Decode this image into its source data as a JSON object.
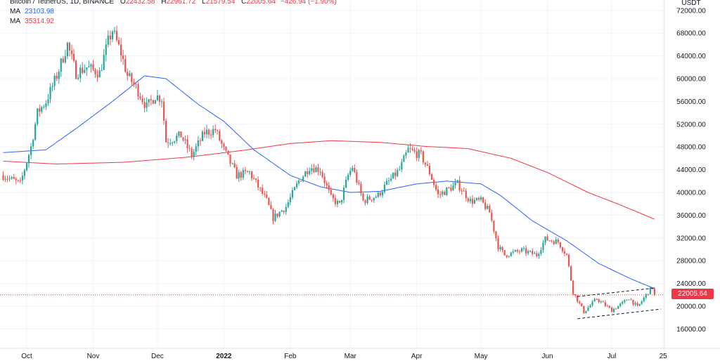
{
  "legend": {
    "symbol": "Bitcoin / TetherUS, 1D, BINANCE",
    "open_label": "O",
    "open": "22432.58",
    "high_label": "H",
    "high": "22961.72",
    "low_label": "L",
    "low": "21579.54",
    "close_label": "C",
    "close": "22005.64",
    "change": "−426.94 (−1.90%)",
    "ma1_label": "MA",
    "ma1_value": "23103.98",
    "ma2_label": "MA",
    "ma2_value": "35314.92"
  },
  "price_axis": {
    "unit": "USDT",
    "ticks": [
      "72000.00",
      "68000.00",
      "64000.00",
      "60000.00",
      "56000.00",
      "52000.00",
      "48000.00",
      "44000.00",
      "40000.00",
      "36000.00",
      "32000.00",
      "28000.00",
      "24000.00",
      "20000.00",
      "16000.00"
    ],
    "last_price": "22005.64"
  },
  "colors": {
    "up": "#26a69a",
    "down": "#ef5350",
    "ma_fast": "#2962ff",
    "ma_slow": "#f23645",
    "last_line": "#f23645"
  },
  "chart_data": {
    "type": "candlestick",
    "y_axis": {
      "min": 15000,
      "max": 73000,
      "ticks": [
        72000,
        68000,
        64000,
        60000,
        56000,
        52000,
        48000,
        44000,
        40000,
        36000,
        32000,
        28000,
        24000,
        20000,
        16000
      ]
    },
    "x_axis": {
      "ticks": [
        {
          "label": "Oct",
          "date": "2021-10-01"
        },
        {
          "label": "Nov",
          "date": "2021-11-01"
        },
        {
          "label": "Dec",
          "date": "2021-12-01"
        },
        {
          "label": "2022",
          "date": "2022-01-01",
          "bold": true
        },
        {
          "label": "Feb",
          "date": "2022-02-01"
        },
        {
          "label": "Mar",
          "date": "2022-03-01"
        },
        {
          "label": "Apr",
          "date": "2022-04-01"
        },
        {
          "label": "May",
          "date": "2022-05-01"
        },
        {
          "label": "Jun",
          "date": "2022-06-01"
        },
        {
          "label": "Jul",
          "date": "2022-07-01"
        },
        {
          "label": "25",
          "date": "2022-07-25"
        }
      ]
    },
    "price_path": [
      [
        "2021-09-20",
        43000
      ],
      [
        "2021-09-28",
        41500
      ],
      [
        "2021-10-03",
        48000
      ],
      [
        "2021-10-06",
        54000
      ],
      [
        "2021-10-10",
        56000
      ],
      [
        "2021-10-15",
        60500
      ],
      [
        "2021-10-20",
        66000
      ],
      [
        "2021-10-24",
        61000
      ],
      [
        "2021-10-29",
        62000
      ],
      [
        "2021-11-04",
        61000
      ],
      [
        "2021-11-08",
        66500
      ],
      [
        "2021-11-10",
        68500
      ],
      [
        "2021-11-14",
        64500
      ],
      [
        "2021-11-17",
        60500
      ],
      [
        "2021-11-21",
        58500
      ],
      [
        "2021-11-26",
        55000
      ],
      [
        "2021-11-30",
        57000
      ],
      [
        "2021-12-03",
        56500
      ],
      [
        "2021-12-05",
        49000
      ],
      [
        "2021-12-12",
        50000
      ],
      [
        "2021-12-17",
        46500
      ],
      [
        "2021-12-23",
        50500
      ],
      [
        "2021-12-28",
        51000
      ],
      [
        "2022-01-01",
        47500
      ],
      [
        "2022-01-07",
        43000
      ],
      [
        "2022-01-13",
        43500
      ],
      [
        "2022-01-21",
        38500
      ],
      [
        "2022-01-24",
        35500
      ],
      [
        "2022-01-30",
        37500
      ],
      [
        "2022-02-05",
        42000
      ],
      [
        "2022-02-10",
        44500
      ],
      [
        "2022-02-15",
        44000
      ],
      [
        "2022-02-20",
        39000
      ],
      [
        "2022-02-24",
        37800
      ],
      [
        "2022-02-28",
        43000
      ],
      [
        "2022-03-02",
        44500
      ],
      [
        "2022-03-07",
        38500
      ],
      [
        "2022-03-14",
        39500
      ],
      [
        "2022-03-18",
        41500
      ],
      [
        "2022-03-24",
        44000
      ],
      [
        "2022-03-28",
        47500
      ],
      [
        "2022-04-03",
        46500
      ],
      [
        "2022-04-07",
        43500
      ],
      [
        "2022-04-11",
        39500
      ],
      [
        "2022-04-20",
        41500
      ],
      [
        "2022-04-26",
        38500
      ],
      [
        "2022-05-01",
        38500
      ],
      [
        "2022-05-05",
        36500
      ],
      [
        "2022-05-09",
        30500
      ],
      [
        "2022-05-12",
        29000
      ],
      [
        "2022-05-20",
        29800
      ],
      [
        "2022-05-27",
        29000
      ],
      [
        "2022-05-31",
        31800
      ],
      [
        "2022-06-06",
        31300
      ],
      [
        "2022-06-10",
        29000
      ],
      [
        "2022-06-13",
        22500
      ],
      [
        "2022-06-18",
        19000
      ],
      [
        "2022-06-24",
        21300
      ],
      [
        "2022-07-01",
        19300
      ],
      [
        "2022-07-06",
        20500
      ],
      [
        "2022-07-09",
        21500
      ],
      [
        "2022-07-13",
        19800
      ],
      [
        "2022-07-18",
        22500
      ],
      [
        "2022-07-20",
        23300
      ],
      [
        "2022-07-21",
        22005
      ]
    ],
    "ma_fast_path": [
      [
        "2021-09-20",
        47000
      ],
      [
        "2021-10-10",
        47500
      ],
      [
        "2021-10-25",
        51500
      ],
      [
        "2021-11-10",
        56000
      ],
      [
        "2021-11-25",
        60500
      ],
      [
        "2021-12-05",
        60000
      ],
      [
        "2021-12-20",
        55500
      ],
      [
        "2022-01-01",
        52500
      ],
      [
        "2022-01-15",
        47500
      ],
      [
        "2022-02-01",
        43000
      ],
      [
        "2022-02-15",
        41000
      ],
      [
        "2022-03-01",
        40000
      ],
      [
        "2022-03-15",
        40200
      ],
      [
        "2022-04-01",
        41500
      ],
      [
        "2022-04-15",
        42000
      ],
      [
        "2022-05-01",
        41500
      ],
      [
        "2022-05-10",
        39500
      ],
      [
        "2022-05-25",
        35000
      ],
      [
        "2022-06-10",
        31500
      ],
      [
        "2022-06-25",
        27500
      ],
      [
        "2022-07-10",
        24800
      ],
      [
        "2022-07-21",
        23100
      ]
    ],
    "ma_slow_path": [
      [
        "2021-09-20",
        45500
      ],
      [
        "2021-10-15",
        45000
      ],
      [
        "2021-11-15",
        45300
      ],
      [
        "2021-12-15",
        46200
      ],
      [
        "2022-01-10",
        47400
      ],
      [
        "2022-02-01",
        48600
      ],
      [
        "2022-02-20",
        49100
      ],
      [
        "2022-03-15",
        48800
      ],
      [
        "2022-04-05",
        48100
      ],
      [
        "2022-04-25",
        47700
      ],
      [
        "2022-05-15",
        46000
      ],
      [
        "2022-06-01",
        43500
      ],
      [
        "2022-06-20",
        40000
      ],
      [
        "2022-07-05",
        37800
      ],
      [
        "2022-07-21",
        35300
      ]
    ],
    "channel": {
      "upper": [
        [
          "2022-06-15",
          21700
        ],
        [
          "2022-07-21",
          23200
        ]
      ],
      "lower": [
        [
          "2022-06-15",
          17800
        ],
        [
          "2022-07-24",
          19500
        ]
      ]
    },
    "last_close": 22005.64
  }
}
